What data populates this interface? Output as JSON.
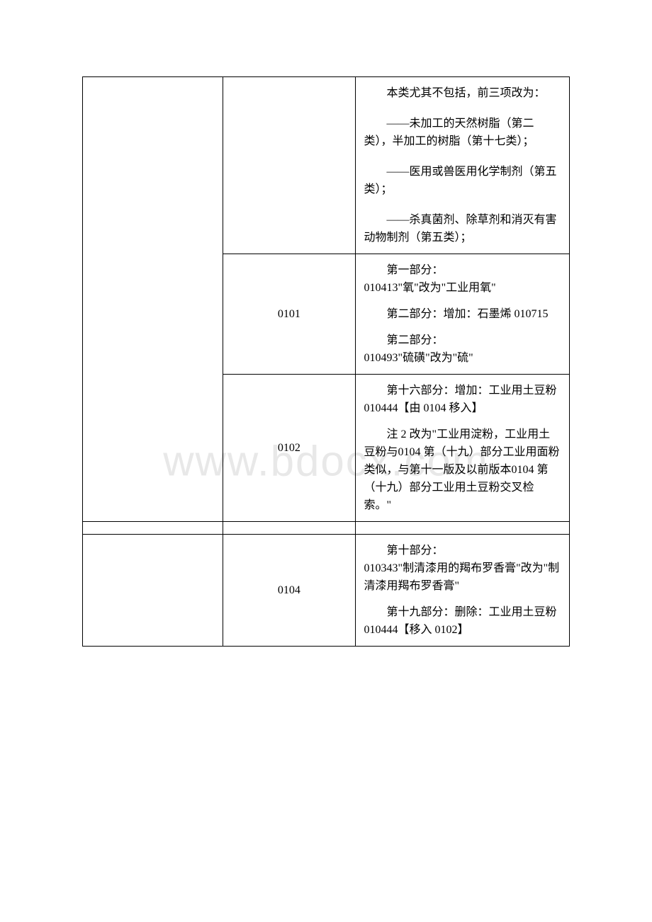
{
  "watermark": "www.bdocx.com",
  "table": {
    "columns": {
      "col1_width": 198,
      "col2_width": 186,
      "col3_width": 302
    },
    "border_color": "#000000",
    "font_size": 16,
    "line_height": 25,
    "rows": [
      {
        "col1": "",
        "col2": "",
        "col3": {
          "paragraphs": [
            {
              "text": "本类尤其不包括，前三项改为：",
              "first_indent": true
            },
            {
              "text": "——未加工的天然树脂（第二类），半加工的树脂（第十七类）；",
              "first_indent": true
            },
            {
              "text": "——医用或兽医用化学制剂（第五类）；",
              "first_indent": true
            },
            {
              "text": "——杀真菌剂、除草剂和消灭有害动物制剂（第五类）；",
              "first_indent": true
            }
          ]
        }
      },
      {
        "col2": "0101",
        "col3": {
          "paragraphs": [
            {
              "text_line1": "第一部分：",
              "text_rest": "010413\"氧\"改为\"工业用氧\"",
              "first_indent": true
            },
            {
              "text": "第二部分：增加：石墨烯 010715",
              "first_indent": true
            },
            {
              "text_line1": "第二部分：",
              "text_rest": "010493\"硫磺\"改为\"硫\"",
              "first_indent": true
            }
          ]
        }
      },
      {
        "col2": "0102",
        "col3": {
          "paragraphs": [
            {
              "text": "第十六部分：增加：工业用土豆粉010444【由 0104 移入】",
              "first_indent": true
            },
            {
              "text": "注 2 改为\"工业用淀粉，工业用土豆粉与0104 第（十九）部分工业用面粉类似，与第十一版及以前版本0104 第（十九）部分工业用土豆粉交叉检索。\"",
              "first_indent": true
            }
          ]
        }
      },
      {
        "empty": true
      },
      {
        "col1": "",
        "col2": "0104",
        "col3": {
          "paragraphs": [
            {
              "text_line1": "第十部分：",
              "text_rest": "010343\"制清漆用的羯布罗香膏\"改为\"制清漆用羯布罗香膏\"",
              "first_indent": true
            },
            {
              "text": "第十九部分：删除：工业用土豆粉010444【移入 0102】",
              "first_indent": true
            }
          ]
        }
      }
    ]
  }
}
